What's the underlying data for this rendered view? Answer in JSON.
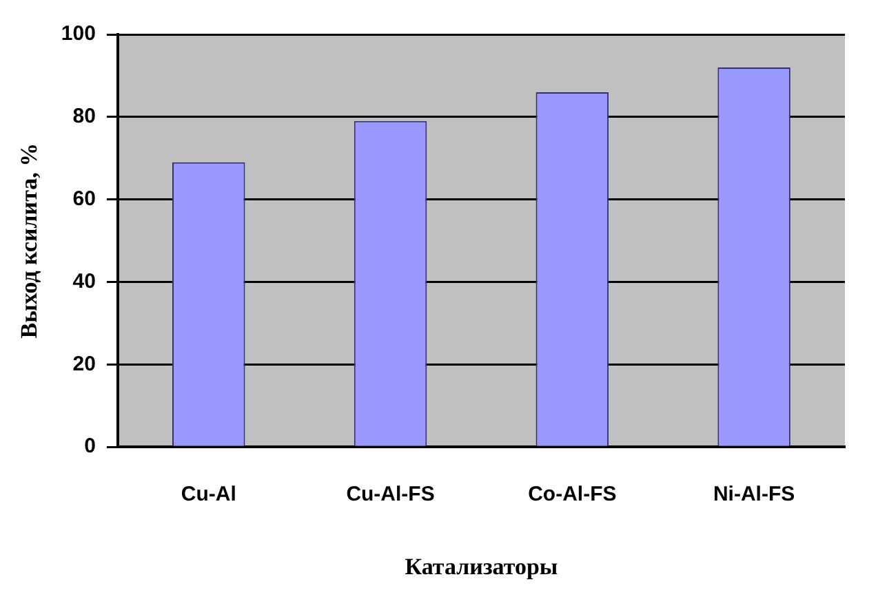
{
  "chart_data": {
    "type": "bar",
    "xlabel": "Катализаторы",
    "ylabel": "Выход ксилита, %",
    "categories": [
      "Cu-Al",
      "Cu-Al-FS",
      "Co-Al-FS",
      "Ni-Al-FS"
    ],
    "values": [
      69,
      79,
      86,
      92
    ],
    "color": "#9999ff",
    "ylim": [
      0,
      100
    ],
    "yticks": [
      0,
      20,
      40,
      60,
      80,
      100
    ],
    "grid": "y",
    "legend": false
  }
}
